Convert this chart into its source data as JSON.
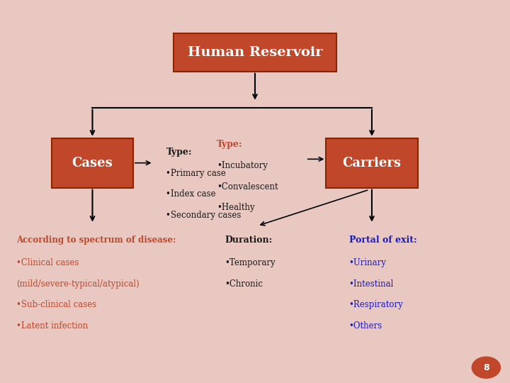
{
  "bg_color": "#e8c8c0",
  "box_color": "#c0472a",
  "box_text_color": "white",
  "title": "Human Reservoir",
  "cases_label": "Cases",
  "carriers_label": "Carriers",
  "cases_type_title": "Type:",
  "cases_type_items": [
    "•Primary case",
    "•Index case",
    "•Secondary cases"
  ],
  "carriers_type_title": "Type:",
  "carriers_type_items": [
    "•Incubatory",
    "•Convalescent",
    "•Healthy"
  ],
  "spectrum_title": "According to spectrum of disease:",
  "spectrum_items": [
    "•Clinical cases",
    "(mild/severe-typical/atypical)",
    "•Sub-clinical cases",
    "•Latent infection"
  ],
  "duration_title": "Duration:",
  "duration_items": [
    "•Temporary",
    "•Chronic"
  ],
  "portal_title": "Portal of exit:",
  "portal_items": [
    "•Urinary",
    "•Intestinal",
    "•Respiratory",
    "•Others"
  ],
  "red_color": "#c0472a",
  "blue_color": "#1a1acd",
  "black_color": "#1a1a1a",
  "page_num": "8"
}
